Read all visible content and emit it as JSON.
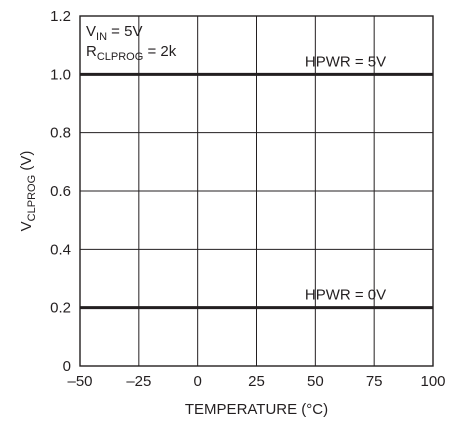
{
  "chart_data": {
    "type": "line",
    "title": "",
    "xlabel": "TEMPERATURE (°C)",
    "ylabel": {
      "main": "V",
      "sub": "CLPROG",
      "rest": " (V)"
    },
    "xlim": [
      -50,
      100
    ],
    "ylim": [
      0,
      1.2
    ],
    "x_ticks": [
      -50,
      -25,
      0,
      25,
      50,
      75,
      100
    ],
    "x_tick_labels": [
      "–50",
      "–25",
      "0",
      "25",
      "50",
      "75",
      "100"
    ],
    "y_ticks": [
      0,
      0.2,
      0.4,
      0.6,
      0.8,
      1.0,
      1.2
    ],
    "y_tick_labels": [
      "0",
      "0.2",
      "0.4",
      "0.6",
      "0.8",
      "1.0",
      "1.2"
    ],
    "grid": true,
    "series": [
      {
        "name": "HPWR = 5V",
        "x": [
          -50,
          100
        ],
        "y": [
          1.0,
          1.0
        ]
      },
      {
        "name": "HPWR = 0V",
        "x": [
          -50,
          100
        ],
        "y": [
          0.2,
          0.2
        ]
      }
    ],
    "conditions": [
      {
        "main": "V",
        "sub": "IN",
        "rest": " = 5V"
      },
      {
        "main": "R",
        "sub": "CLPROG",
        "rest": " = 2k"
      }
    ],
    "colors": {
      "line": "#231f20",
      "grid": "#231f20",
      "text": "#231f20"
    }
  }
}
